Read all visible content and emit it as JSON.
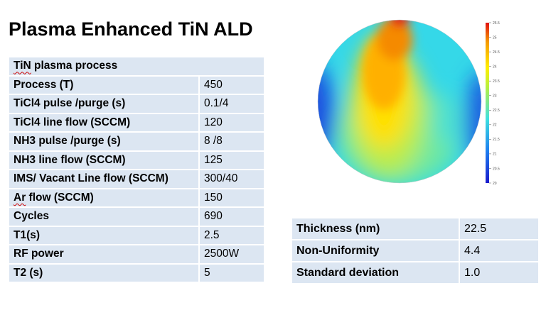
{
  "title": "Plasma Enhanced TiN ALD",
  "process_table": {
    "header": "TiN plasma process",
    "rows": [
      {
        "label": "Process (T)",
        "value": "450"
      },
      {
        "label": "TiCl4 pulse /purge (s)",
        "value": "0.1/4"
      },
      {
        "label": "TiCl4 line flow (SCCM)",
        "value": "120"
      },
      {
        "label": "NH3 pulse /purge (s)",
        "value": "8 /8"
      },
      {
        "label": "NH3 line flow (SCCM)",
        "value": "125"
      },
      {
        "label": "IMS/ Vacant Line flow (SCCM)",
        "value": "300/40"
      },
      {
        "label": "Ar flow (SCCM)",
        "value": "150"
      },
      {
        "label": "Cycles",
        "value": "690"
      },
      {
        "label": "T1(s)",
        "value": "2.5"
      },
      {
        "label": "RF power",
        "value": "2500W"
      },
      {
        "label": "T2 (s)",
        "value": "5"
      }
    ]
  },
  "results_table": {
    "rows": [
      {
        "label": "Thickness (nm)",
        "value": "22.5"
      },
      {
        "label": "Non-Uniformity",
        "value": "4.4"
      },
      {
        "label": "Standard deviation",
        "value": "1.0"
      }
    ]
  },
  "wafer_map": {
    "colorbar_ticks": [
      "25.5",
      "25",
      "24.5",
      "24",
      "23.5",
      "23",
      "22.5",
      "22",
      "21.5",
      "21",
      "20.5",
      "20"
    ],
    "colormap": [
      "#d7191c",
      "#f57c00",
      "#ffd400",
      "#c8e84a",
      "#4fe0c8",
      "#27b4f0",
      "#1a3fd9"
    ]
  }
}
